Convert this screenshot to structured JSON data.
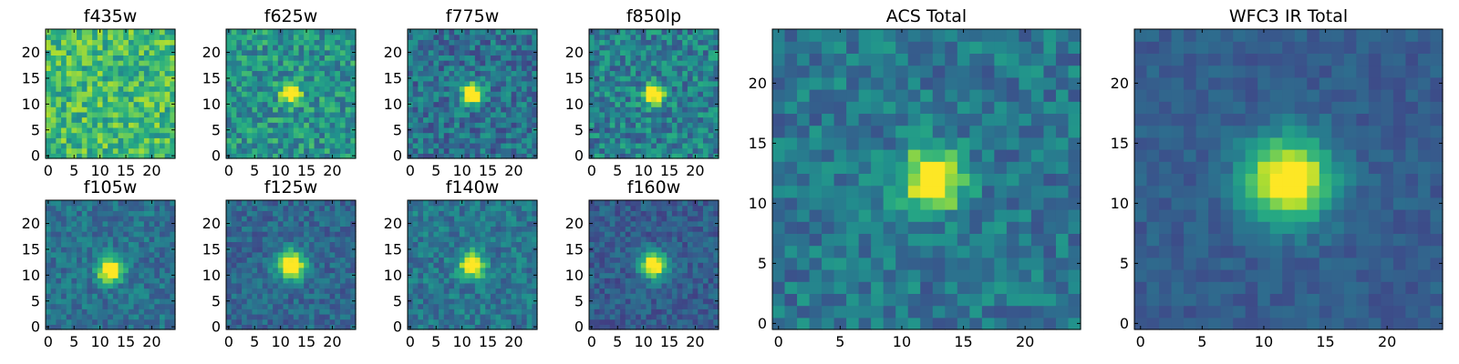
{
  "chart_data": {
    "type": "heatmap",
    "colormap": "viridis",
    "grid": false,
    "image_size": [
      25,
      25
    ],
    "panels": [
      {
        "id": "f435w",
        "title": "f435w",
        "xlim": [
          0,
          24
        ],
        "ylim": [
          0,
          24
        ],
        "xticks": [
          0,
          5,
          10,
          15,
          20
        ],
        "yticks": [
          0,
          5,
          10,
          15,
          20
        ],
        "source": {
          "center": [
            12,
            12
          ],
          "sigma": 1.8,
          "peak": 0.0,
          "background": 0.68,
          "noise": 0.42,
          "seed": 11
        }
      },
      {
        "id": "f625w",
        "title": "f625w",
        "xlim": [
          0,
          24
        ],
        "ylim": [
          0,
          24
        ],
        "xticks": [
          0,
          5,
          10,
          15,
          20
        ],
        "yticks": [
          0,
          5,
          10,
          15,
          20
        ],
        "source": {
          "center": [
            12,
            12
          ],
          "sigma": 1.3,
          "peak": 0.75,
          "background": 0.52,
          "noise": 0.4,
          "seed": 23
        }
      },
      {
        "id": "f775w",
        "title": "f775w",
        "xlim": [
          0,
          24
        ],
        "ylim": [
          0,
          24
        ],
        "xticks": [
          0,
          5,
          10,
          15,
          20
        ],
        "yticks": [
          0,
          5,
          10,
          15,
          20
        ],
        "source": {
          "center": [
            12,
            12
          ],
          "sigma": 1.4,
          "peak": 0.9,
          "background": 0.38,
          "noise": 0.36,
          "seed": 37
        }
      },
      {
        "id": "f850lp",
        "title": "f850lp",
        "xlim": [
          0,
          24
        ],
        "ylim": [
          0,
          24
        ],
        "xticks": [
          0,
          5,
          10,
          15,
          20
        ],
        "yticks": [
          0,
          5,
          10,
          15,
          20
        ],
        "source": {
          "center": [
            12,
            12
          ],
          "sigma": 1.4,
          "peak": 0.8,
          "background": 0.44,
          "noise": 0.4,
          "seed": 41
        }
      },
      {
        "id": "f105w",
        "title": "f105w",
        "xlim": [
          0,
          24
        ],
        "ylim": [
          0,
          24
        ],
        "xticks": [
          0,
          5,
          10,
          15,
          20
        ],
        "yticks": [
          0,
          5,
          10,
          15,
          20
        ],
        "source": {
          "center": [
            12,
            11
          ],
          "sigma": 1.6,
          "peak": 0.9,
          "background": 0.38,
          "noise": 0.26,
          "seed": 53
        }
      },
      {
        "id": "f125w",
        "title": "f125w",
        "xlim": [
          0,
          24
        ],
        "ylim": [
          0,
          24
        ],
        "xticks": [
          0,
          5,
          10,
          15,
          20
        ],
        "yticks": [
          0,
          5,
          10,
          15,
          20
        ],
        "source": {
          "center": [
            12,
            12
          ],
          "sigma": 1.9,
          "peak": 0.85,
          "background": 0.34,
          "noise": 0.24,
          "seed": 67
        }
      },
      {
        "id": "f140w",
        "title": "f140w",
        "xlim": [
          0,
          24
        ],
        "ylim": [
          0,
          24
        ],
        "xticks": [
          0,
          5,
          10,
          15,
          20
        ],
        "yticks": [
          0,
          5,
          10,
          15,
          20
        ],
        "source": {
          "center": [
            12,
            12
          ],
          "sigma": 1.6,
          "peak": 0.85,
          "background": 0.4,
          "noise": 0.28,
          "seed": 79
        }
      },
      {
        "id": "f160w",
        "title": "f160w",
        "xlim": [
          0,
          24
        ],
        "ylim": [
          0,
          24
        ],
        "xticks": [
          0,
          5,
          10,
          15,
          20
        ],
        "yticks": [
          0,
          5,
          10,
          15,
          20
        ],
        "source": {
          "center": [
            12,
            12
          ],
          "sigma": 1.7,
          "peak": 0.9,
          "background": 0.3,
          "noise": 0.22,
          "seed": 97
        }
      },
      {
        "id": "acs-total",
        "title": "ACS Total",
        "xlim": [
          0,
          24
        ],
        "ylim": [
          0,
          24
        ],
        "xticks": [
          0,
          5,
          10,
          15,
          20
        ],
        "yticks": [
          0,
          5,
          10,
          15,
          20
        ],
        "source": {
          "center": [
            12.5,
            12
          ],
          "sigma": 1.7,
          "peak": 0.85,
          "background": 0.4,
          "noise": 0.3,
          "seed": 101
        }
      },
      {
        "id": "wfc3-ir-total",
        "title": "WFC3 IR Total",
        "xlim": [
          0,
          24
        ],
        "ylim": [
          0,
          24
        ],
        "xticks": [
          0,
          5,
          10,
          15,
          20
        ],
        "yticks": [
          0,
          5,
          10,
          15,
          20
        ],
        "source": {
          "center": [
            12,
            12
          ],
          "sigma": 2.4,
          "peak": 0.85,
          "background": 0.3,
          "noise": 0.14,
          "seed": 131
        }
      }
    ]
  }
}
